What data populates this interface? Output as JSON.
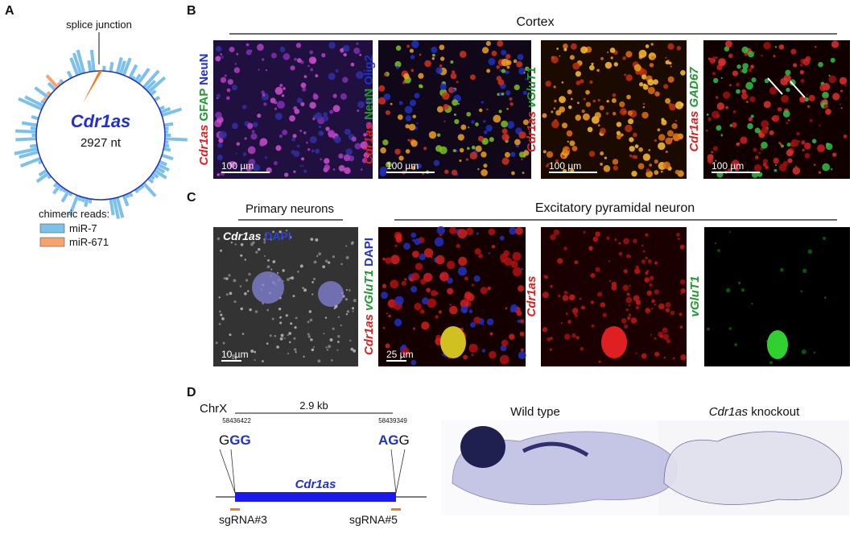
{
  "panels": {
    "A": {
      "label": "A",
      "junction": "splice junction",
      "name": "Cdr1as",
      "length": "2927 nt",
      "legend_title": "chimeric reads:",
      "legend": [
        {
          "name": "miR-7",
          "color": "#7cc0ec"
        },
        {
          "name": "miR-671",
          "color": "#f7a46a"
        }
      ]
    },
    "B": {
      "label": "B",
      "region": "Cortex",
      "images": [
        {
          "stain": [
            {
              "text": "Cdr1as",
              "color": "#e0201f",
              "italic": true
            },
            {
              "text": "GFAP",
              "color": "#1c9a2c"
            },
            {
              "text": "NeuN",
              "color": "#2030d0"
            }
          ],
          "scale": "100 µm"
        },
        {
          "stain": [
            {
              "text": "Cdr1as",
              "color": "#e0201f",
              "italic": true
            },
            {
              "text": "NeuN",
              "color": "#1c9a2c"
            },
            {
              "text": "Olig2",
              "color": "#2030d0"
            }
          ],
          "scale": "100 µm"
        },
        {
          "stain": [
            {
              "text": "Cdr1as",
              "color": "#e0201f",
              "italic": true
            },
            {
              "text": "vGluT1",
              "color": "#1c9a2c",
              "italic": true
            }
          ],
          "scale": "100 µm"
        },
        {
          "stain": [
            {
              "text": "Cdr1as",
              "color": "#e0201f",
              "italic": true
            },
            {
              "text": "GAD67",
              "color": "#1c9a2c",
              "italic": true
            }
          ],
          "scale": "100 µm"
        }
      ]
    },
    "C": {
      "label": "C",
      "group1": "Primary neurons",
      "group2": "Excitatory pyramidal neuron",
      "images": [
        {
          "stain": [
            {
              "text": "Cdr1as",
              "color": "#ffffff",
              "italic": true
            },
            {
              "text": "DAPI",
              "color": "#3040e0"
            }
          ],
          "scale": "10 µm"
        },
        {
          "stain": [
            {
              "text": "Cdr1as",
              "color": "#e0201f",
              "italic": true
            },
            {
              "text": "vGluT1",
              "color": "#1c9a2c",
              "italic": true
            },
            {
              "text": "DAPI",
              "color": "#2030d0"
            }
          ],
          "scale": "25 µm"
        },
        {
          "stain": [
            {
              "text": "Cdr1as",
              "color": "#e0201f",
              "italic": true
            }
          ]
        },
        {
          "stain": [
            {
              "text": "vGluT1",
              "color": "#1c9a2c",
              "italic": true
            }
          ]
        }
      ]
    },
    "D": {
      "label": "D",
      "chrom": "ChrX",
      "span": "2.9 kb",
      "start": "58436422",
      "end": "58439349",
      "left_seq": [
        "G",
        "GG"
      ],
      "right_seq": [
        "AG",
        "G"
      ],
      "gene": "Cdr1as",
      "sg_left": "sgRNA#3",
      "sg_right": "sgRNA#5",
      "wt_title": "Wild type",
      "ko_title": [
        "Cdr1as",
        " knockout"
      ]
    }
  }
}
